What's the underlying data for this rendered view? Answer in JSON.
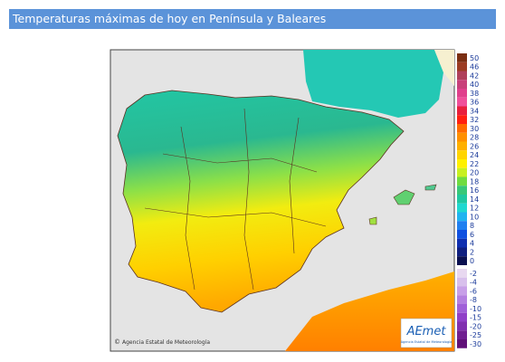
{
  "header": {
    "title": "Temperaturas máximas de hoy en Península y Baleares"
  },
  "map": {
    "credit": "Agencia Estatal de Meteorología",
    "credit_symbol": "©",
    "logo": "AEmet",
    "logo_subtitle": "Agencia Estatal de Meteorología"
  },
  "legend": [
    {
      "label": "50",
      "color": "#7a2e12"
    },
    {
      "label": "46",
      "color": "#9c3c22"
    },
    {
      "label": "42",
      "color": "#b0405a"
    },
    {
      "label": "40",
      "color": "#c8407a"
    },
    {
      "label": "38",
      "color": "#e0408c"
    },
    {
      "label": "36",
      "color": "#f0509a"
    },
    {
      "label": "34",
      "color": "#e8203c"
    },
    {
      "label": "32",
      "color": "#ff2010"
    },
    {
      "label": "30",
      "color": "#ff6a00"
    },
    {
      "label": "28",
      "color": "#ff9000"
    },
    {
      "label": "26",
      "color": "#ffb000"
    },
    {
      "label": "24",
      "color": "#ffd400"
    },
    {
      "label": "22",
      "color": "#fff000"
    },
    {
      "label": "20",
      "color": "#c8f020"
    },
    {
      "label": "18",
      "color": "#70dc40"
    },
    {
      "label": "16",
      "color": "#38c878"
    },
    {
      "label": "14",
      "color": "#20c8a0"
    },
    {
      "label": "12",
      "color": "#20d8d0"
    },
    {
      "label": "10",
      "color": "#20b4f0"
    },
    {
      "label": "8",
      "color": "#2080f0"
    },
    {
      "label": "6",
      "color": "#1050e0"
    },
    {
      "label": "4",
      "color": "#1030b0"
    },
    {
      "label": "2",
      "color": "#102080"
    },
    {
      "label": "0",
      "color": "#0a1050"
    },
    {
      "label": "-2",
      "color": "#e8d8f0"
    },
    {
      "label": "-4",
      "color": "#d8c0ec"
    },
    {
      "label": "-6",
      "color": "#c8a0e8"
    },
    {
      "label": "-8",
      "color": "#b480e0"
    },
    {
      "label": "-10",
      "color": "#a060d8"
    },
    {
      "label": "-15",
      "color": "#9040c8"
    },
    {
      "label": "-20",
      "color": "#8030b0"
    },
    {
      "label": "-25",
      "color": "#702090"
    },
    {
      "label": "-30",
      "color": "#601078"
    }
  ]
}
